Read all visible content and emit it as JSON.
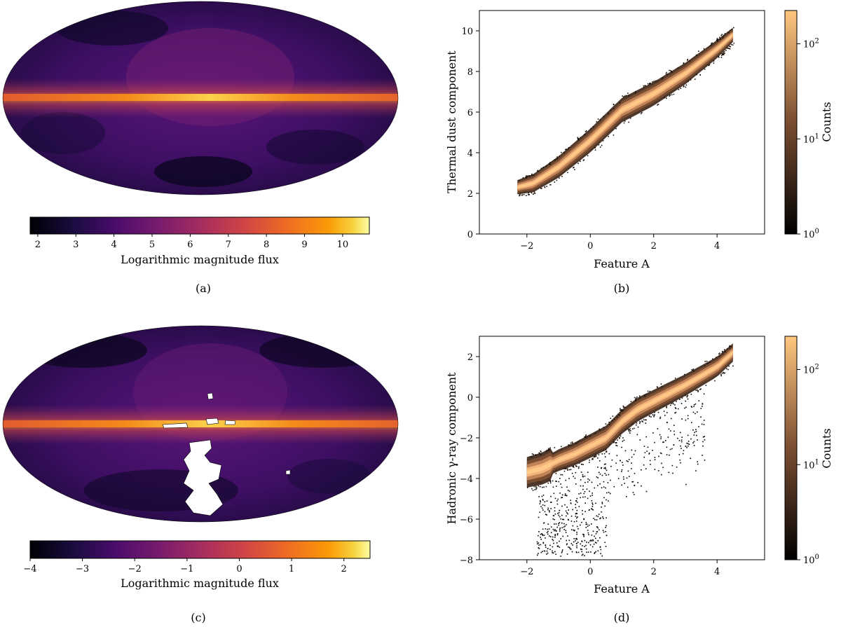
{
  "chart_data": [
    {
      "panel": "(a)",
      "type": "heatmap",
      "projection": "mollweide all-sky map",
      "colormap": "inferno",
      "colorbar_label": "Logarithmic magnitude flux",
      "colorbar_range": [
        1.8,
        10.7
      ],
      "colorbar_ticks": [
        "2",
        "3",
        "4",
        "5",
        "6",
        "7",
        "8",
        "9",
        "10"
      ],
      "colorbar_tick_values": [
        2,
        3,
        4,
        5,
        6,
        7,
        8,
        9,
        10
      ],
      "caption": "(a)"
    },
    {
      "panel": "(b)",
      "type": "heatmap",
      "kind": "2d histogram",
      "colormap": "copper",
      "xlabel": "Feature A",
      "ylabel": "Thermal dust component",
      "xlim": [
        -3.5,
        5.5
      ],
      "ylim": [
        0,
        11
      ],
      "xticks": [
        "−2",
        "0",
        "2",
        "4"
      ],
      "xtick_values": [
        -2,
        0,
        2,
        4
      ],
      "yticks": [
        "0",
        "2",
        "4",
        "6",
        "8",
        "10"
      ],
      "ytick_values": [
        0,
        2,
        4,
        6,
        8,
        10
      ],
      "colorbar_label": "Counts",
      "colorbar_scale": "log",
      "colorbar_range_exp": [
        0,
        2.35
      ],
      "colorbar_ticks": [
        {
          "base": "10",
          "exp": "0"
        },
        {
          "base": "10",
          "exp": "1"
        },
        {
          "base": "10",
          "exp": "2"
        }
      ],
      "colorbar_tick_exps": [
        0,
        1,
        2
      ],
      "ridge": [
        [
          -2.3,
          2.3
        ],
        [
          -1.8,
          2.5
        ],
        [
          -1.0,
          3.3
        ],
        [
          0.0,
          4.6
        ],
        [
          1.0,
          6.1
        ],
        [
          2.0,
          6.9
        ],
        [
          3.0,
          7.9
        ],
        [
          4.0,
          9.1
        ],
        [
          4.5,
          9.8
        ]
      ],
      "caption": "(b)"
    },
    {
      "panel": "(c)",
      "type": "heatmap",
      "projection": "mollweide all-sky map",
      "colormap": "inferno",
      "colorbar_label": "Logarithmic magnitude flux",
      "colorbar_range": [
        -4,
        2.5
      ],
      "colorbar_ticks": [
        "−4",
        "−3",
        "−2",
        "−1",
        "0",
        "1",
        "2"
      ],
      "colorbar_tick_values": [
        -4,
        -3,
        -2,
        -1,
        0,
        1,
        2
      ],
      "caption": "(c)"
    },
    {
      "panel": "(d)",
      "type": "heatmap",
      "kind": "2d histogram",
      "colormap": "copper",
      "xlabel": "Feature A",
      "ylabel": "Hadronic γ-ray component",
      "xlim": [
        -3.5,
        5.5
      ],
      "ylim": [
        -8,
        3
      ],
      "xticks": [
        "−2",
        "0",
        "2",
        "4"
      ],
      "xtick_values": [
        -2,
        0,
        2,
        4
      ],
      "yticks": [
        "−8",
        "−6",
        "−4",
        "−2",
        "0",
        "2"
      ],
      "ytick_values": [
        -8,
        -6,
        -4,
        -2,
        0,
        2
      ],
      "colorbar_label": "Counts",
      "colorbar_scale": "log",
      "colorbar_range_exp": [
        0,
        2.35
      ],
      "colorbar_ticks": [
        {
          "base": "10",
          "exp": "0"
        },
        {
          "base": "10",
          "exp": "1"
        },
        {
          "base": "10",
          "exp": "2"
        }
      ],
      "colorbar_tick_exps": [
        0,
        1,
        2
      ],
      "ridge": [
        [
          -2.0,
          -3.7
        ],
        [
          -1.5,
          -3.5
        ],
        [
          -1.0,
          -3.1
        ],
        [
          -0.5,
          -2.8
        ],
        [
          0.0,
          -2.4
        ],
        [
          0.5,
          -2.0
        ],
        [
          1.0,
          -1.2
        ],
        [
          1.5,
          -0.6
        ],
        [
          2.0,
          -0.2
        ],
        [
          3.0,
          0.6
        ],
        [
          4.0,
          1.5
        ],
        [
          4.5,
          2.2
        ]
      ],
      "caption": "(d)"
    }
  ]
}
